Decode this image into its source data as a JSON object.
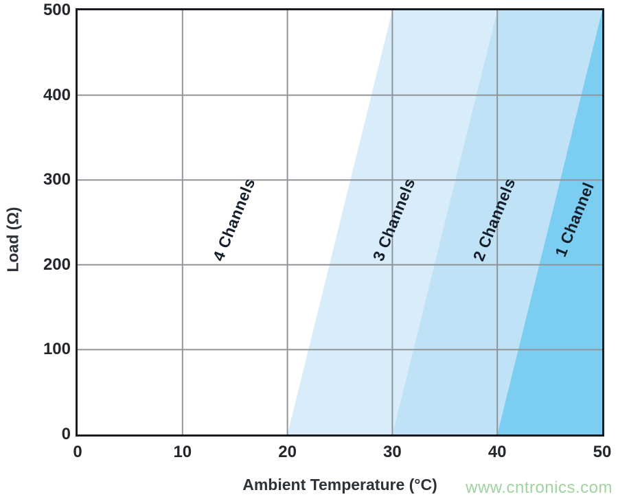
{
  "watermark": {
    "text": "www.cntronics.com",
    "color": "#9fd49f"
  },
  "colors": {
    "grid": "#8f9499",
    "frame": "#171a1e",
    "tick_text": "#23272c",
    "axis_title_text": "#2d3238",
    "region_label_text": "#151f2b"
  },
  "chart_data": {
    "type": "area",
    "title": "",
    "xlabel": "Ambient Temperature (°C)",
    "ylabel": "Load (Ω)",
    "xlim": [
      0,
      50
    ],
    "ylim": [
      0,
      500
    ],
    "xticks": [
      0,
      10,
      20,
      30,
      40,
      50
    ],
    "yticks": [
      0,
      100,
      200,
      300,
      400,
      500
    ],
    "grid": true,
    "legend": "none",
    "regions": [
      {
        "label": "4 Channels",
        "fill": "#ffffff",
        "polygon": [
          [
            0,
            0
          ],
          [
            20,
            0
          ],
          [
            30,
            500
          ],
          [
            0,
            500
          ]
        ],
        "label_at": [
          14.9,
          253
        ]
      },
      {
        "label": "3 Channels",
        "fill": "#d9ecf9",
        "polygon": [
          [
            20,
            0
          ],
          [
            30,
            0
          ],
          [
            40,
            500
          ],
          [
            30,
            500
          ]
        ],
        "label_at": [
          30.2,
          253
        ]
      },
      {
        "label": "2 Channels",
        "fill": "#bfe2f6",
        "polygon": [
          [
            30,
            0
          ],
          [
            40,
            0
          ],
          [
            50,
            500
          ],
          [
            40,
            500
          ]
        ],
        "label_at": [
          39.7,
          253
        ]
      },
      {
        "label": "1 Channel",
        "fill": "#7bcdf1",
        "polygon": [
          [
            40,
            0
          ],
          [
            50,
            0
          ],
          [
            50,
            500
          ]
        ],
        "label_at": [
          47.4,
          253
        ]
      }
    ],
    "boundary_lines": [
      {
        "from_x_at_load0": 20,
        "to_x_at_load500": 30
      },
      {
        "from_x_at_load0": 30,
        "to_x_at_load500": 40
      },
      {
        "from_x_at_load0": 40,
        "to_x_at_load500": 50
      }
    ]
  }
}
